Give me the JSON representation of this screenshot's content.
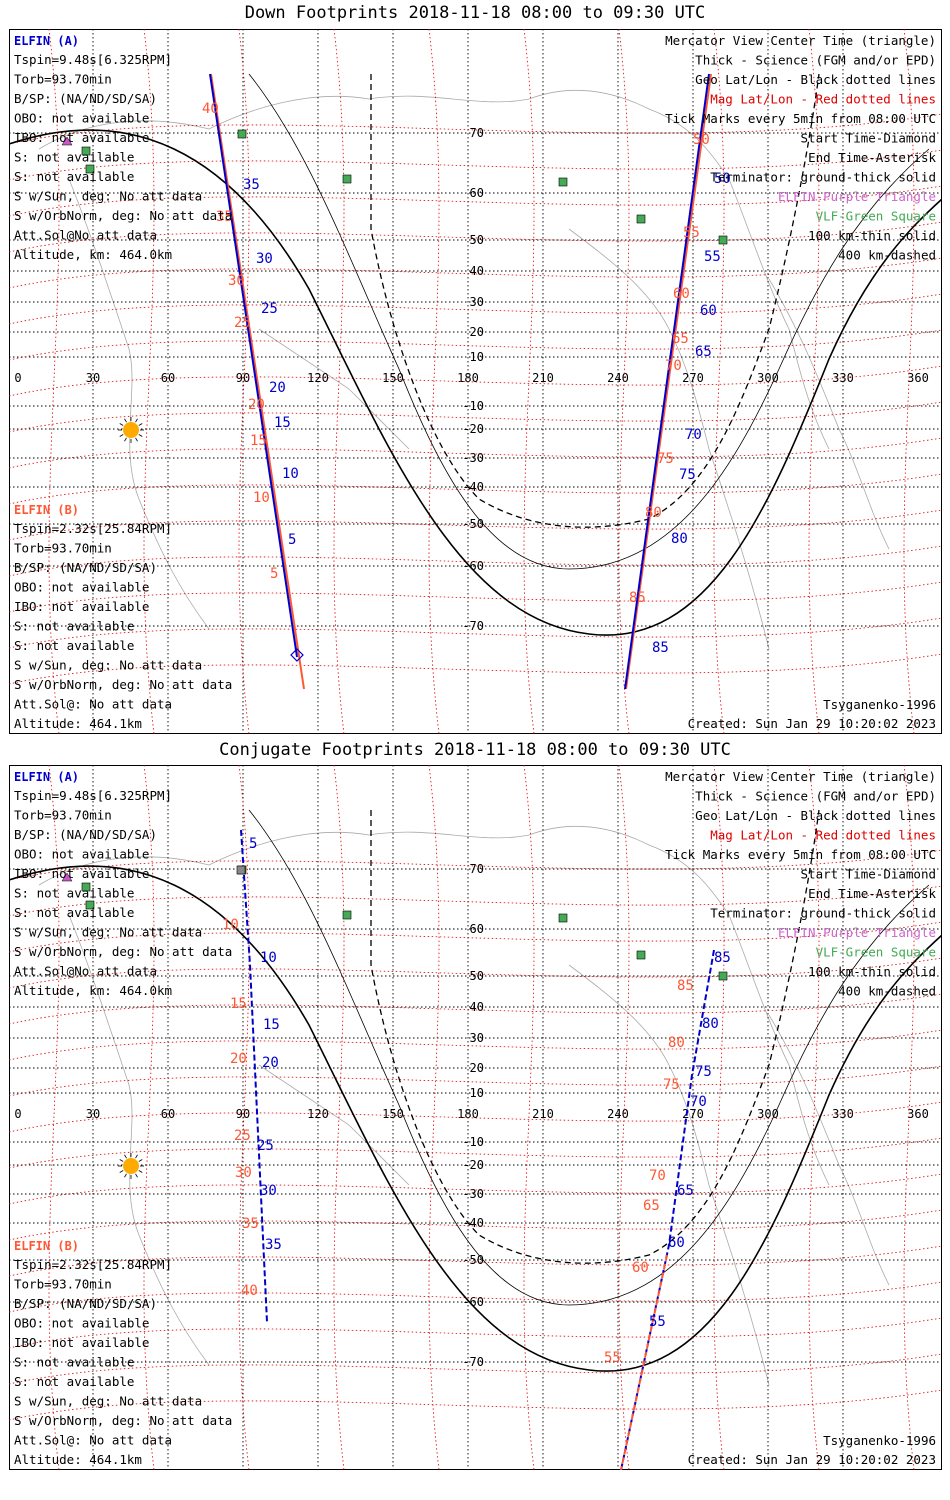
{
  "colors": {
    "elfin_a": "#0000cc",
    "elfin_b": "#ff5733",
    "geo_grid": "#000000",
    "mag_grid": "#dd0000",
    "elfin_tri": "#cc55cc",
    "vlf": "#44aa55",
    "coast": "#aaaaaa",
    "sun": "#ffaa00"
  },
  "panels": [
    {
      "title": "Down Footprints 2018-11-18 08:00 to 09:30 UTC",
      "left_info": {
        "a_name": "ELFIN (A)",
        "a_lines": [
          "Tspin=9.48s[6.325RPM]",
          "Torb=93.70min",
          "B/SP: (NA/ND/SD/SA)",
          "OBO: not available",
          "IBO: not available",
          "S: not available",
          "S: not available",
          "S w/Sun, deg: No att data",
          "S w/OrbNorm, deg: No att data",
          "Att.Sol@No att data",
          "Altitude, km: 464.0km"
        ],
        "b_name": "ELFIN (B)",
        "b_lines": [
          "Tspin=2.32s[25.84RPM]",
          "Torb=93.70min",
          "B/SP: (NA/ND/SD/SA)",
          "OBO: not available",
          "IBO: not available",
          "S: not available",
          "S: not available",
          "S w/Sun, deg: No att data",
          "S w/OrbNorm, deg: No att data",
          "Att.Sol@: No att data",
          "Altitude: 464.1km"
        ]
      },
      "legend": [
        {
          "text": "Mercator View Center Time (triangle)",
          "color": "#000000"
        },
        {
          "text": "Thick - Science (FGM and/or EPD)",
          "color": "#000000"
        },
        {
          "text": "Geo Lat/Lon - Black dotted lines",
          "color": "#000000"
        },
        {
          "text": "Mag Lat/Lon - Red dotted lines",
          "color": "#dd0000"
        },
        {
          "text": "Tick Marks every 5min from 08:00 UTC",
          "color": "#000000"
        },
        {
          "text": "Start Time-Diamond",
          "color": "#000000"
        },
        {
          "text": "End Time-Asterisk",
          "color": "#000000"
        },
        {
          "text": "Terminator: ground-thick solid",
          "color": "#000000"
        },
        {
          "text": "ELFIN-Purple Triangle",
          "color": "#cc66cc"
        },
        {
          "text": "VLF-Green Square",
          "color": "#44aa55"
        },
        {
          "text": "100 km-thin solid",
          "color": "#000000"
        },
        {
          "text": "400 km-dashed",
          "color": "#000000"
        }
      ],
      "footer_left": "",
      "footer_right": "Tsyganenko-1996",
      "footer_created": "Created: Sun Jan 29 10:20:02 2023"
    },
    {
      "title": "Conjugate Footprints 2018-11-18 08:00 to 09:30 UTC",
      "left_info": {
        "a_name": "ELFIN (A)",
        "a_lines": [
          "Tspin=9.48s[6.325RPM]",
          "Torb=93.70min",
          "B/SP: (NA/ND/SD/SA)",
          "OBO: not available",
          "IBO: not available",
          "S: not available",
          "S: not available",
          "S w/Sun, deg: No att data",
          "S w/OrbNorm, deg: No att data",
          "Att.Sol@No att data",
          "Altitude, km: 464.0km"
        ],
        "b_name": "ELFIN (B)",
        "b_lines": [
          "Tspin=2.32s[25.84RPM]",
          "Torb=93.70min",
          "B/SP: (NA/ND/SD/SA)",
          "OBO: not available",
          "IBO: not available",
          "S: not available",
          "S: not available",
          "S w/Sun, deg: No att data",
          "S w/OrbNorm, deg: No att data",
          "Att.Sol@: No att data",
          "Altitude: 464.1km"
        ]
      },
      "legend": [
        {
          "text": "Mercator View Center Time (triangle)",
          "color": "#000000"
        },
        {
          "text": "Thick - Science (FGM and/or EPD)",
          "color": "#000000"
        },
        {
          "text": "Geo Lat/Lon - Black dotted lines",
          "color": "#000000"
        },
        {
          "text": "Mag Lat/Lon - Red dotted lines",
          "color": "#dd0000"
        },
        {
          "text": "Tick Marks every 5min from 08:00 UTC",
          "color": "#000000"
        },
        {
          "text": "Start Time-Diamond",
          "color": "#000000"
        },
        {
          "text": "End Time-Asterisk",
          "color": "#000000"
        },
        {
          "text": "Terminator: ground-thick solid",
          "color": "#000000"
        },
        {
          "text": "ELFIN-Purple Triangle",
          "color": "#cc66cc"
        },
        {
          "text": "VLF-Green Square",
          "color": "#44aa55"
        },
        {
          "text": "100 km-thin solid",
          "color": "#000000"
        },
        {
          "text": "400 km-dashed",
          "color": "#000000"
        }
      ],
      "footer_right": "Tsyganenko-1996",
      "footer_created": "Created: Sun Jan 29 10:20:02 2023"
    }
  ],
  "map": {
    "lon_labels": [
      "0",
      "30",
      "60",
      "90",
      "120",
      "150",
      "180",
      "210",
      "240",
      "270",
      "300",
      "330",
      "360"
    ],
    "lat_labels": [
      "70",
      "60",
      "50",
      "40",
      "30",
      "20",
      "10",
      "-10",
      "-20",
      "-30",
      "-40",
      "-50",
      "-60",
      "-70"
    ]
  },
  "tracks": {
    "down_a_ticks": [
      "35",
      "30",
      "25",
      "20",
      "15",
      "10",
      "5",
      "50",
      "55",
      "60",
      "65",
      "70",
      "75",
      "80",
      "85"
    ],
    "down_b_ticks": [
      "40",
      "35",
      "30",
      "25",
      "20",
      "15",
      "10",
      "5",
      "50",
      "55",
      "60",
      "65",
      "70",
      "75",
      "80",
      "85"
    ],
    "conj_a_ticks": [
      "5",
      "10",
      "15",
      "20",
      "25",
      "30",
      "35",
      "85",
      "80",
      "75",
      "70",
      "65",
      "60",
      "55"
    ],
    "conj_b_ticks": [
      "10",
      "15",
      "20",
      "25",
      "30",
      "35",
      "40",
      "85",
      "80",
      "75",
      "70",
      "65",
      "60",
      "55"
    ]
  }
}
